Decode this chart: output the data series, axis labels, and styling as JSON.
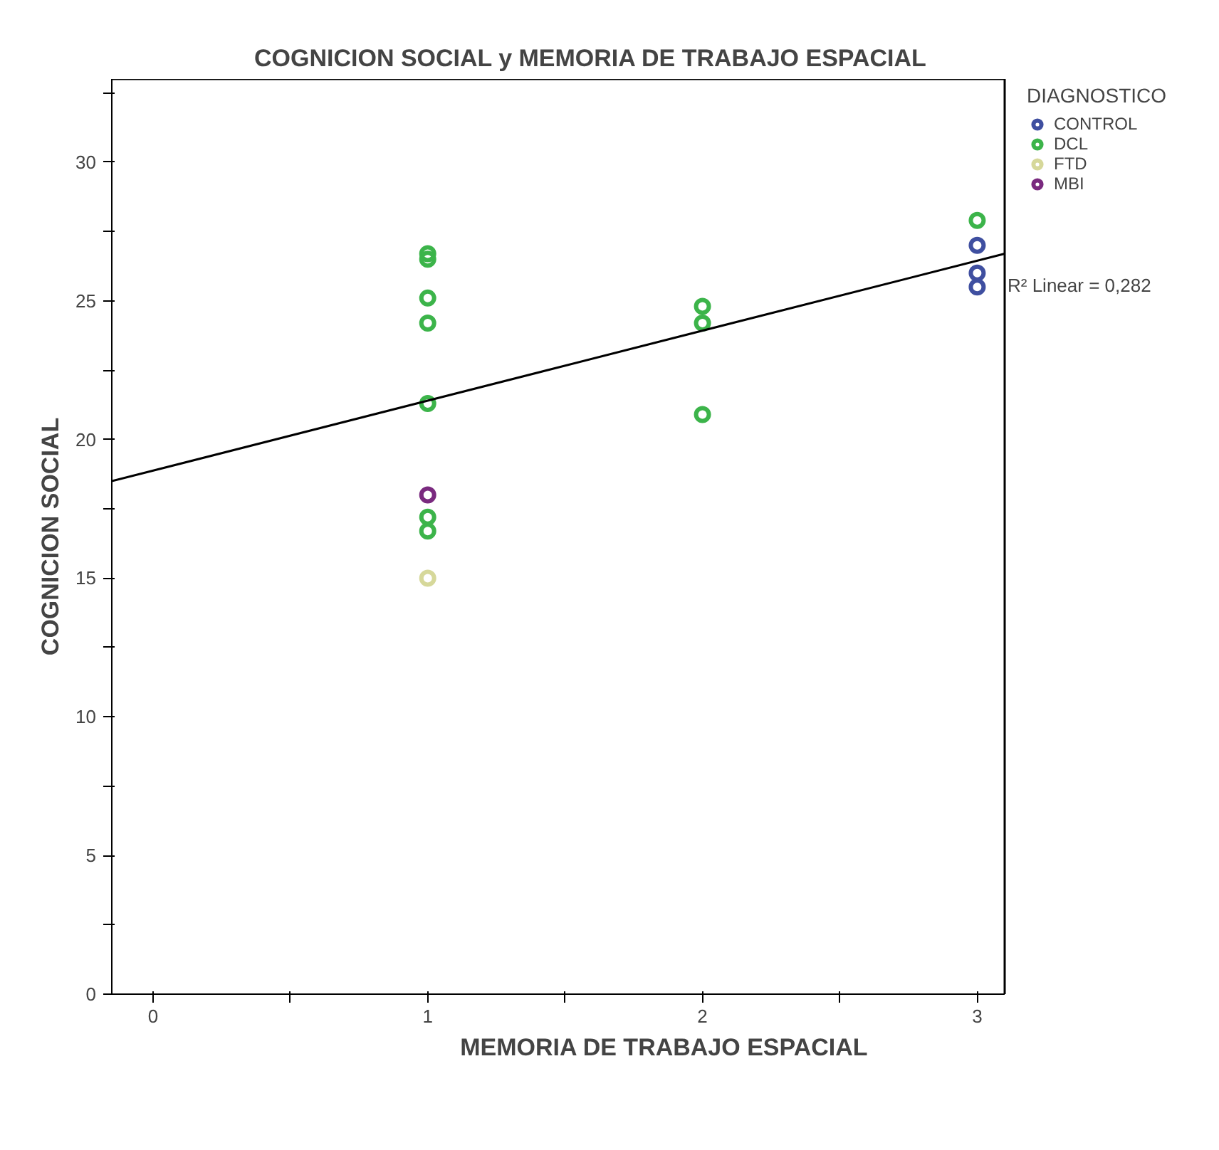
{
  "chart_data": {
    "type": "scatter",
    "title": "COGNICION SOCIAL y MEMORIA DE TRABAJO ESPACIAL",
    "xlabel": "MEMORIA DE TRABAJO ESPACIAL",
    "ylabel": "COGNICION SOCIAL",
    "legend_title": "DIAGNOSTICO",
    "xlim": [
      -0.15,
      3.1
    ],
    "ylim": [
      0,
      33
    ],
    "xticks": [
      0,
      {
        "value": 0.5,
        "label": null
      },
      1,
      {
        "value": 1.5,
        "label": null
      },
      2,
      {
        "value": 2.5,
        "label": null
      },
      3
    ],
    "yticks": [
      0,
      {
        "value": 2.5,
        "label": null
      },
      5,
      {
        "value": 7.5,
        "label": null
      },
      10,
      {
        "value": 12.5,
        "label": null
      },
      15,
      {
        "value": 17.5,
        "label": null
      },
      20,
      {
        "value": 22.5,
        "label": null
      },
      25,
      {
        "value": 27.5,
        "label": null
      },
      30,
      {
        "value": 32.5,
        "label": null
      }
    ],
    "grid": false,
    "legend": "right",
    "marker": "circle",
    "series": [
      {
        "name": "CONTROL",
        "color": "#3f4fa0",
        "x": [
          3,
          3,
          3
        ],
        "values": [
          27.0,
          26.0,
          25.5
        ]
      },
      {
        "name": "DCL",
        "color": "#3cb44a",
        "x": [
          1,
          1,
          1,
          1,
          1,
          1,
          1,
          2,
          2,
          2,
          3
        ],
        "values": [
          26.7,
          26.5,
          25.1,
          24.2,
          21.3,
          17.2,
          16.7,
          24.8,
          24.2,
          20.9,
          27.9
        ]
      },
      {
        "name": "FTD",
        "color": "#d6d89a",
        "x": [
          1
        ],
        "values": [
          15.0
        ]
      },
      {
        "name": "MBI",
        "color": "#7a2a7f",
        "x": [
          1
        ],
        "values": [
          18.0
        ]
      },
      {
        "type": "line",
        "marker": "none",
        "color": "#000000",
        "x": [
          -0.15,
          3.1
        ],
        "values": [
          18.5,
          26.7
        ]
      }
    ],
    "annotations": [
      {
        "text": "R² Linear = 0,282",
        "x": 3.1,
        "y": 26.7
      }
    ]
  }
}
